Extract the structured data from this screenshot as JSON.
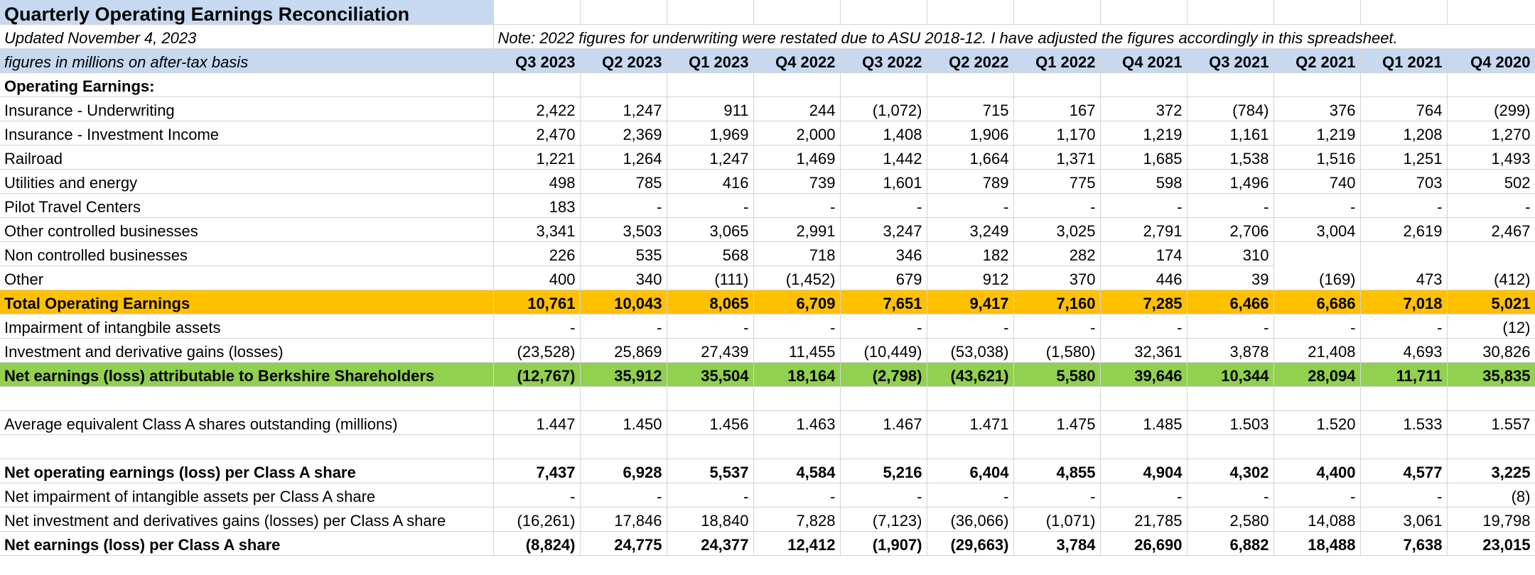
{
  "title": "Quarterly Operating Earnings Reconciliation",
  "updated": "Updated November 4, 2023",
  "note": "Note: 2022 figures for  underwriting were restated due to ASU 2018-12. I have adjusted the figures accordingly in this spreadsheet.",
  "basis_label": "figures in millions on after-tax basis",
  "quarters": [
    "Q3 2023",
    "Q2 2023",
    "Q1 2023",
    "Q4 2022",
    "Q3 2022",
    "Q2 2022",
    "Q1 2022",
    "Q4 2021",
    "Q3 2021",
    "Q2 2021",
    "Q1 2021",
    "Q4 2020"
  ],
  "section_label": "Operating Earnings:",
  "rows": [
    {
      "label": "Insurance - Underwriting",
      "values": [
        "2,422",
        "1,247",
        "911",
        "244",
        "(1,072)",
        "715",
        "167",
        "372",
        "(784)",
        "376",
        "764",
        "(299)"
      ]
    },
    {
      "label": "Insurance - Investment Income",
      "values": [
        "2,470",
        "2,369",
        "1,969",
        "2,000",
        "1,408",
        "1,906",
        "1,170",
        "1,219",
        "1,161",
        "1,219",
        "1,208",
        "1,270"
      ]
    },
    {
      "label": "Railroad",
      "values": [
        "1,221",
        "1,264",
        "1,247",
        "1,469",
        "1,442",
        "1,664",
        "1,371",
        "1,685",
        "1,538",
        "1,516",
        "1,251",
        "1,493"
      ]
    },
    {
      "label": "Utilities and energy",
      "values": [
        "498",
        "785",
        "416",
        "739",
        "1,601",
        "789",
        "775",
        "598",
        "1,496",
        "740",
        "703",
        "502"
      ]
    },
    {
      "label": "Pilot Travel Centers",
      "values": [
        "183",
        "-",
        "-",
        "-",
        "-",
        "-",
        "-",
        "-",
        "-",
        "-",
        "-",
        "-"
      ]
    },
    {
      "label": "Other controlled businesses",
      "values": [
        "3,341",
        "3,503",
        "3,065",
        "2,991",
        "3,247",
        "3,249",
        "3,025",
        "2,791",
        "2,706",
        "3,004",
        "2,619",
        "2,467"
      ]
    }
  ],
  "non_controlled": {
    "label": "Non controlled businesses",
    "values": [
      "226",
      "535",
      "568",
      "718",
      "346",
      "182",
      "282",
      "174",
      "310"
    ]
  },
  "other": {
    "label": "Other",
    "values": [
      "400",
      "340",
      "(111)",
      "(1,452)",
      "679",
      "912",
      "370",
      "446",
      "39"
    ]
  },
  "merged_values": [
    "(169)",
    "473",
    "(412)"
  ],
  "total_operating": {
    "label": "Total Operating Earnings",
    "values": [
      "10,761",
      "10,043",
      "8,065",
      "6,709",
      "7,651",
      "9,417",
      "7,160",
      "7,285",
      "6,466",
      "6,686",
      "7,018",
      "5,021"
    ]
  },
  "impairment": {
    "label": "Impairment of intangbile assets",
    "values": [
      "-",
      "-",
      "-",
      "-",
      "-",
      "-",
      "-",
      "-",
      "-",
      "-",
      "-",
      "(12)"
    ]
  },
  "investment_gains": {
    "label": "Investment and derivative gains (losses)",
    "values": [
      "(23,528)",
      "25,869",
      "27,439",
      "11,455",
      "(10,449)",
      "(53,038)",
      "(1,580)",
      "32,361",
      "3,878",
      "21,408",
      "4,693",
      "30,826"
    ]
  },
  "net_earnings": {
    "label": "Net earnings (loss) attributable to Berkshire Shareholders",
    "values": [
      "(12,767)",
      "35,912",
      "35,504",
      "18,164",
      "(2,798)",
      "(43,621)",
      "5,580",
      "39,646",
      "10,344",
      "28,094",
      "11,711",
      "35,835"
    ]
  },
  "avg_shares": {
    "label": "Average equivalent Class A shares outstanding (millions)",
    "values": [
      "1.447",
      "1.450",
      "1.456",
      "1.463",
      "1.467",
      "1.471",
      "1.475",
      "1.485",
      "1.503",
      "1.520",
      "1.533",
      "1.557"
    ]
  },
  "per_share_operating": {
    "label": "Net operating earnings (loss) per Class A share",
    "values": [
      "7,437",
      "6,928",
      "5,537",
      "4,584",
      "5,216",
      "6,404",
      "4,855",
      "4,904",
      "4,302",
      "4,400",
      "4,577",
      "3,225"
    ]
  },
  "per_share_impairment": {
    "label": "Net impairment of intangible assets per Class A share",
    "values": [
      "-",
      "-",
      "-",
      "-",
      "-",
      "-",
      "-",
      "-",
      "-",
      "-",
      "-",
      "(8)"
    ]
  },
  "per_share_investment": {
    "label": "Net investment and derivatives gains (losses) per Class A share",
    "values": [
      "(16,261)",
      "17,846",
      "18,840",
      "7,828",
      "(7,123)",
      "(36,066)",
      "(1,071)",
      "21,785",
      "2,580",
      "14,088",
      "3,061",
      "19,798"
    ]
  },
  "per_share_net": {
    "label": "Net earnings (loss) per Class A share",
    "values": [
      "(8,824)",
      "24,775",
      "24,377",
      "12,412",
      "(1,907)",
      "(29,663)",
      "3,784",
      "26,690",
      "6,882",
      "18,488",
      "7,638",
      "23,015"
    ]
  }
}
